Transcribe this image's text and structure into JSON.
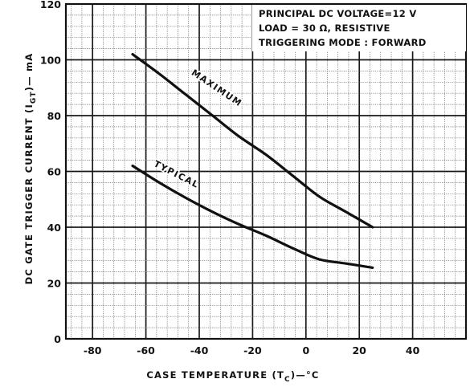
{
  "chart_data": {
    "type": "line",
    "title": "",
    "xlabel": "CASE TEMPERATURE (T",
    "xlabel_sub": "C",
    "xlabel_tail": ")—°C",
    "ylabel": "DC GATE TRIGGER CURRENT (I",
    "ylabel_sub": "GT",
    "ylabel_tail": ")— mA",
    "xlim": [
      -90,
      60
    ],
    "ylim": [
      0,
      120
    ],
    "x_ticks": [
      -80,
      -60,
      -40,
      -20,
      0,
      20,
      40
    ],
    "x_tick_labels": [
      "-80",
      "-60",
      "-40",
      "-20",
      "0",
      "20",
      "40"
    ],
    "y_ticks": [
      0,
      20,
      40,
      60,
      80,
      100,
      120
    ],
    "y_tick_labels": [
      "0",
      "20",
      "40",
      "60",
      "80",
      "100",
      "120"
    ],
    "grid": true,
    "minor_grid_step_x": 4,
    "minor_grid_step_y": 4,
    "series": [
      {
        "name": "MAXIMUM",
        "color": "#111111",
        "x": [
          -65,
          -55,
          -45,
          -35,
          -25,
          -15,
          -5,
          5,
          15,
          25
        ],
        "y": [
          102,
          95,
          87.5,
          80,
          72.5,
          66,
          58.5,
          51,
          45.5,
          40
        ]
      },
      {
        "name": "TYPICAL",
        "color": "#111111",
        "x": [
          -65,
          -55,
          -45,
          -35,
          -25,
          -15,
          -5,
          5,
          15,
          25
        ],
        "y": [
          62,
          56,
          50.5,
          45.5,
          41,
          37,
          32.5,
          28.5,
          27,
          25.5
        ]
      }
    ],
    "annotation": [
      "PRINCIPAL DC VOLTAGE=12 V",
      "LOAD = 30 Ω, RESISTIVE",
      "TRIGGERING  MODE : FORWARD"
    ]
  }
}
